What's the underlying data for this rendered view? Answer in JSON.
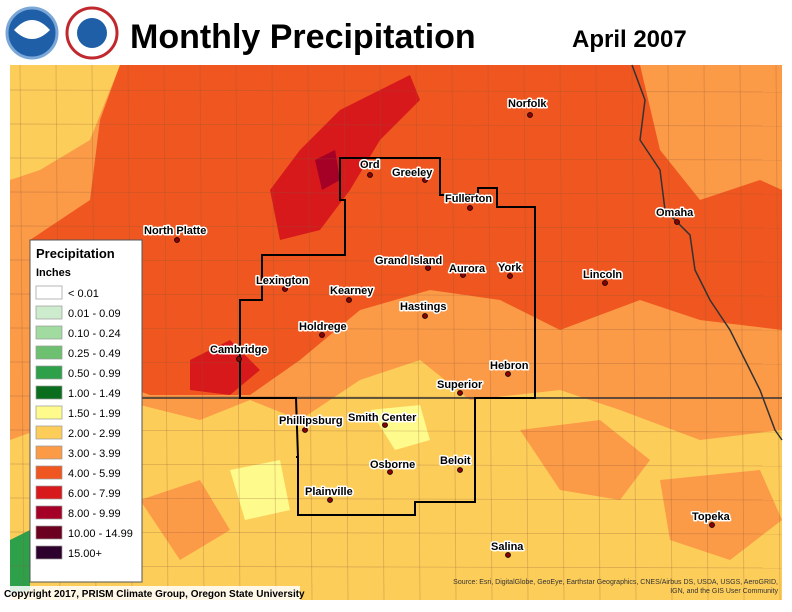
{
  "header": {
    "title": "Monthly Precipitation",
    "period": "April 2007"
  },
  "cities": [
    "Norfolk",
    "Ord",
    "Greeley",
    "Fullerton",
    "Omaha",
    "North Platte",
    "Grand Island",
    "Aurora",
    "York",
    "Lincoln",
    "Lexington",
    "Kearney",
    "Hastings",
    "Holdrege",
    "Cambridge",
    "Hebron",
    "Superior",
    "Phillipsburg",
    "Smith Center",
    "Beloit",
    "Osborne",
    "Plainville",
    "Topeka",
    "Salina"
  ],
  "legend": {
    "title": "Precipitation",
    "units": "Inches",
    "items": [
      {
        "label": "< 0.01",
        "color": "#ffffff"
      },
      {
        "label": "0.01 - 0.09",
        "color": "#cdeccd"
      },
      {
        "label": "0.10 - 0.24",
        "color": "#a2dba0"
      },
      {
        "label": "0.25 - 0.49",
        "color": "#6cc070"
      },
      {
        "label": "0.50 - 0.99",
        "color": "#2ea04a"
      },
      {
        "label": "1.00 - 1.49",
        "color": "#0a6e1e"
      },
      {
        "label": "1.50 - 1.99",
        "color": "#fffa8c"
      },
      {
        "label": "2.00 - 2.99",
        "color": "#fdcd5a"
      },
      {
        "label": "3.00 - 3.99",
        "color": "#fb9a47"
      },
      {
        "label": "4.00 - 5.99",
        "color": "#f0561f"
      },
      {
        "label": "6.00 - 7.99",
        "color": "#d7191c"
      },
      {
        "label": "8.00 - 9.99",
        "color": "#a50026"
      },
      {
        "label": "10.00 - 14.99",
        "color": "#6b0020"
      },
      {
        "label": "15.00+",
        "color": "#2d002d"
      }
    ]
  },
  "footer": {
    "copyright": "Copyright 2017, PRISM Climate Group, Oregon State University",
    "source_line1": "Source: Esri, DigitalGlobe, GeoEye, Earthstar Geographics, CNES/Airbus DS, USDA, USGS, AeroGRID,",
    "source_line2": "IGN, and the GIS User Community"
  }
}
